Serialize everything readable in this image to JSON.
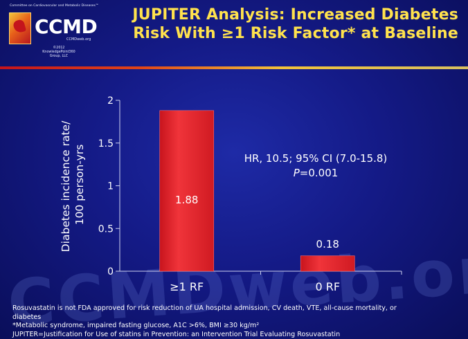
{
  "header": {
    "committee_text": "Committee on Cardiovascular and Metabolic Diseases™",
    "logo_text": "CCMD",
    "logo_url": "CCMDweb.org",
    "copyright_lines": [
      "©2012",
      "KnowledgePoint360",
      "Group, LLC"
    ],
    "title_line1": "JUPITER Analysis: Increased Diabetes",
    "title_line2": "Risk With ≥1 Risk Factor* at Baseline"
  },
  "chart_data": {
    "type": "bar",
    "categories": [
      "≥1 RF",
      "0 RF"
    ],
    "values": [
      1.88,
      0.18
    ],
    "value_labels": [
      "1.88",
      "0.18"
    ],
    "ylabel_lines": [
      "Diabetes incidence rate/",
      "100 person-yrs"
    ],
    "ylim": [
      0,
      2
    ],
    "yticks": [
      0,
      0.5,
      1,
      1.5,
      2
    ],
    "ytick_labels": [
      "0",
      "0.5",
      "1",
      "1.5",
      "2"
    ],
    "grid": false,
    "bar_color": "#e8212b",
    "annotation_line1": "HR, 10.5; 95% CI (7.0-15.8)",
    "annotation_line2_italic": "P",
    "annotation_line2_rest": "=0.001"
  },
  "watermark": "CCMDweb.org",
  "footer": {
    "line1": "Rosuvastatin is not FDA approved for risk reduction of UA hospital admission, CV death, VTE, all-cause mortality, or",
    "line2": "diabetes",
    "line3": "*Metabolic syndrome, impaired fasting glucose, A1C >6%, BMI ≥30 kg/m²",
    "line4": "JUPITER=Justification for Use of statins in Prevention: an Intervention Trial Evaluating Rosuvastatin"
  },
  "colors": {
    "title": "#ffe24d",
    "background": "#141a86",
    "bar": "#e8212b"
  }
}
